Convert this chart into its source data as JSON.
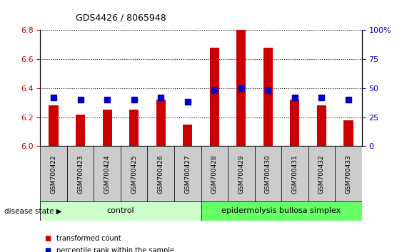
{
  "title": "GDS4426 / 8065948",
  "samples": [
    "GSM700422",
    "GSM700423",
    "GSM700424",
    "GSM700425",
    "GSM700426",
    "GSM700427",
    "GSM700428",
    "GSM700429",
    "GSM700430",
    "GSM700431",
    "GSM700432",
    "GSM700433"
  ],
  "transformed_count": [
    6.28,
    6.22,
    6.25,
    6.25,
    6.32,
    6.15,
    6.68,
    6.8,
    6.68,
    6.32,
    6.28,
    6.18
  ],
  "percentile_rank": [
    42,
    40,
    40,
    40,
    42,
    38,
    48,
    50,
    48,
    42,
    42,
    40
  ],
  "ylim_left": [
    6.0,
    6.8
  ],
  "ylim_right": [
    0,
    100
  ],
  "yticks_left": [
    6.0,
    6.2,
    6.4,
    6.6,
    6.8
  ],
  "yticks_right": [
    0,
    25,
    50,
    75,
    100
  ],
  "bar_color": "#cc0000",
  "dot_color": "#0000cc",
  "control_samples": 6,
  "control_label": "control",
  "disease_label": "epidermolysis bullosa simplex",
  "disease_state_label": "disease state",
  "legend_bar": "transformed count",
  "legend_dot": "percentile rank within the sample",
  "control_bg": "#ccffcc",
  "disease_bg": "#66ff66",
  "xlabel_bg": "#cccccc",
  "bar_width": 0.35,
  "dot_size": 30,
  "figsize": [
    5.63,
    3.54
  ],
  "dpi": 100
}
